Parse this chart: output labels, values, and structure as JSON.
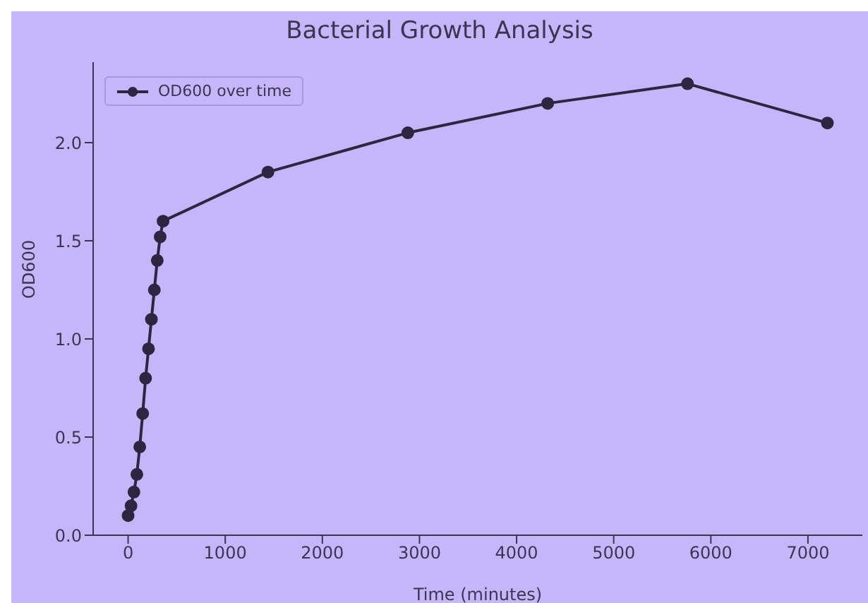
{
  "chart_data": {
    "type": "line",
    "title": "Bacterial Growth Analysis",
    "xlabel": "Time (minutes)",
    "ylabel": "OD600",
    "x": [
      0,
      30,
      60,
      90,
      120,
      150,
      180,
      210,
      240,
      270,
      300,
      330,
      360,
      1440,
      2880,
      4320,
      5760,
      7200
    ],
    "series": [
      {
        "name": "OD600 over time",
        "color": "#2e2640",
        "values": [
          0.1,
          0.15,
          0.22,
          0.31,
          0.45,
          0.62,
          0.8,
          0.95,
          1.1,
          1.25,
          1.4,
          1.52,
          1.6,
          1.85,
          2.05,
          2.2,
          2.3,
          2.1
        ]
      }
    ],
    "xlim": [
      -360,
      7560
    ],
    "xticks": [
      0,
      1000,
      2000,
      3000,
      4000,
      5000,
      6000,
      7000
    ],
    "ylim": [
      0,
      2.41
    ],
    "yticks": [
      {
        "value": 0,
        "label": "0.0"
      },
      0.5,
      {
        "value": 1,
        "label": "1.0"
      },
      1.5,
      {
        "value": 2,
        "label": "2.0"
      }
    ],
    "grid": false,
    "legend": "top left",
    "marker": "circle",
    "line_style": "solid"
  }
}
